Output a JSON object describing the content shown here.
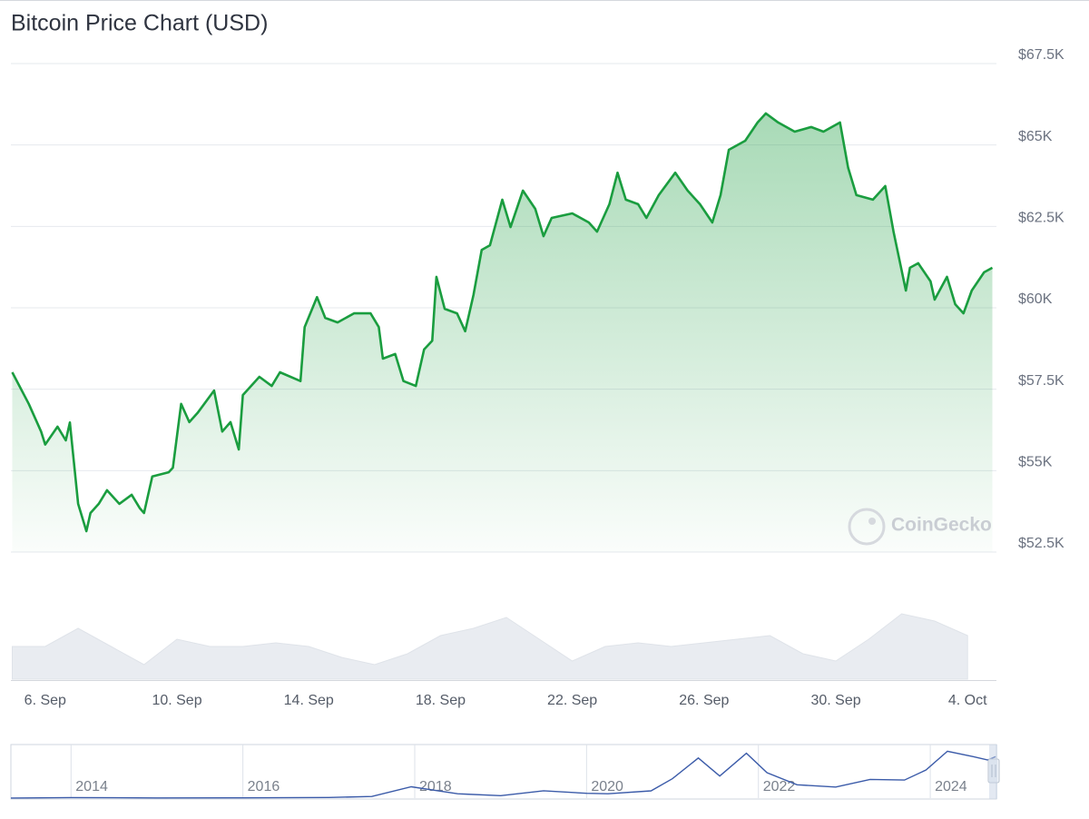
{
  "chart_data": [
    {
      "type": "line",
      "title": "Bitcoin Price Chart (USD)",
      "watermark": "CoinGecko",
      "color": "#1a9d3f",
      "grid": true,
      "xlim": [
        "2024-09-04T23:00",
        "2024-10-04T21:00"
      ],
      "xticks": [
        {
          "value": "2024-09-06T00:00",
          "label": "6. Sep"
        },
        {
          "value": "2024-09-10T00:00",
          "label": "10. Sep"
        },
        {
          "value": "2024-09-14T00:00",
          "label": "14. Sep"
        },
        {
          "value": "2024-09-18T00:00",
          "label": "18. Sep"
        },
        {
          "value": "2024-09-22T00:00",
          "label": "22. Sep"
        },
        {
          "value": "2024-09-26T00:00",
          "label": "26. Sep"
        },
        {
          "value": "2024-09-30T00:00",
          "label": "30. Sep"
        },
        {
          "value": "2024-10-04T00:00",
          "label": "4. Oct"
        }
      ],
      "ylim": [
        52500,
        67500
      ],
      "yticks": [
        {
          "value": 52500,
          "label": "$52.5K"
        },
        {
          "value": 55000,
          "label": "$55K"
        },
        {
          "value": 57500,
          "label": "$57.5K"
        },
        {
          "value": 60000,
          "label": "$60K"
        },
        {
          "value": 62500,
          "label": "$62.5K"
        },
        {
          "value": 65000,
          "label": "$65K"
        },
        {
          "value": 67500,
          "label": "$67.5K"
        }
      ],
      "x": [
        "2024-09-05T00:00",
        "2024-09-05T12:00",
        "2024-09-05T21:00",
        "2024-09-06T00:00",
        "2024-09-06T09:00",
        "2024-09-06T15:00",
        "2024-09-06T18:00",
        "2024-09-07T00:00",
        "2024-09-07T06:00",
        "2024-09-07T09:00",
        "2024-09-07T15:00",
        "2024-09-07T21:00",
        "2024-09-08T06:00",
        "2024-09-08T15:00",
        "2024-09-08T21:00",
        "2024-09-09T00:00",
        "2024-09-09T06:00",
        "2024-09-09T18:00",
        "2024-09-09T21:00",
        "2024-09-10T03:00",
        "2024-09-10T09:00",
        "2024-09-10T15:00",
        "2024-09-11T03:00",
        "2024-09-11T09:00",
        "2024-09-11T15:00",
        "2024-09-11T21:00",
        "2024-09-12T00:00",
        "2024-09-12T12:00",
        "2024-09-12T21:00",
        "2024-09-13T03:00",
        "2024-09-13T18:00",
        "2024-09-13T21:00",
        "2024-09-14T06:00",
        "2024-09-14T12:00",
        "2024-09-14T21:00",
        "2024-09-15T09:00",
        "2024-09-15T21:00",
        "2024-09-16T03:00",
        "2024-09-16T06:00",
        "2024-09-16T15:00",
        "2024-09-16T21:00",
        "2024-09-17T06:00",
        "2024-09-17T12:00",
        "2024-09-17T18:00",
        "2024-09-17T21:00",
        "2024-09-18T03:00",
        "2024-09-18T12:00",
        "2024-09-18T18:00",
        "2024-09-19T00:00",
        "2024-09-19T06:00",
        "2024-09-19T12:00",
        "2024-09-19T21:00",
        "2024-09-20T03:00",
        "2024-09-20T12:00",
        "2024-09-20T21:00",
        "2024-09-21T03:00",
        "2024-09-21T09:00",
        "2024-09-22T00:00",
        "2024-09-22T12:00",
        "2024-09-22T18:00",
        "2024-09-23T03:00",
        "2024-09-23T09:00",
        "2024-09-23T15:00",
        "2024-09-24T00:00",
        "2024-09-24T06:00",
        "2024-09-24T15:00",
        "2024-09-25T03:00",
        "2024-09-25T12:00",
        "2024-09-25T21:00",
        "2024-09-26T06:00",
        "2024-09-26T12:00",
        "2024-09-26T18:00",
        "2024-09-27T06:00",
        "2024-09-27T15:00",
        "2024-09-27T21:00",
        "2024-09-28T06:00",
        "2024-09-28T18:00",
        "2024-09-29T06:00",
        "2024-09-29T15:00",
        "2024-09-30T03:00",
        "2024-09-30T09:00",
        "2024-09-30T15:00",
        "2024-10-01T03:00",
        "2024-10-01T12:00",
        "2024-10-01T18:00",
        "2024-10-02T03:00",
        "2024-10-02T06:00",
        "2024-10-02T12:00",
        "2024-10-02T21:00",
        "2024-10-03T00:00",
        "2024-10-03T09:00",
        "2024-10-03T15:00",
        "2024-10-03T21:00",
        "2024-10-04T03:00",
        "2024-10-04T12:00",
        "2024-10-04T18:00"
      ],
      "values": [
        58020,
        57050,
        56200,
        55800,
        56350,
        55930,
        56480,
        53980,
        53140,
        53700,
        53980,
        54400,
        53980,
        54260,
        53840,
        53700,
        54820,
        54950,
        55090,
        57050,
        56490,
        56770,
        57460,
        56200,
        56490,
        55650,
        57320,
        57880,
        57600,
        58020,
        57750,
        59410,
        60330,
        59690,
        59550,
        59830,
        59830,
        59410,
        58440,
        58580,
        57750,
        57600,
        58720,
        58990,
        60950,
        59970,
        59830,
        59280,
        60390,
        61780,
        61920,
        63320,
        62480,
        63600,
        63040,
        62200,
        62760,
        62900,
        62620,
        62340,
        63180,
        64150,
        63320,
        63180,
        62760,
        63460,
        64150,
        63600,
        63180,
        62620,
        63460,
        64850,
        65130,
        65690,
        65970,
        65690,
        65410,
        65550,
        65410,
        65690,
        64300,
        63460,
        63320,
        63740,
        62340,
        60530,
        61230,
        61370,
        60810,
        60250,
        60950,
        60110,
        59830,
        60530,
        61090,
        61230
      ]
    },
    {
      "type": "area",
      "color": "#e9ecf1",
      "xlim": [
        "2024-09-04T23:00",
        "2024-10-04T21:00"
      ],
      "ylim": [
        0,
        100
      ],
      "x": [
        "2024-09-05T00:00",
        "2024-09-06T00:00",
        "2024-09-07T00:00",
        "2024-09-08T00:00",
        "2024-09-09T00:00",
        "2024-09-10T00:00",
        "2024-09-11T00:00",
        "2024-09-12T00:00",
        "2024-09-13T00:00",
        "2024-09-14T00:00",
        "2024-09-15T00:00",
        "2024-09-16T00:00",
        "2024-09-17T00:00",
        "2024-09-18T00:00",
        "2024-09-19T00:00",
        "2024-09-20T00:00",
        "2024-09-21T00:00",
        "2024-09-22T00:00",
        "2024-09-23T00:00",
        "2024-09-24T00:00",
        "2024-09-25T00:00",
        "2024-09-26T00:00",
        "2024-09-27T00:00",
        "2024-09-28T00:00",
        "2024-09-29T00:00",
        "2024-09-30T00:00",
        "2024-10-01T00:00",
        "2024-10-02T00:00",
        "2024-10-03T00:00",
        "2024-10-04T00:00"
      ],
      "values": [
        45,
        45,
        70,
        45,
        20,
        55,
        45,
        45,
        50,
        45,
        30,
        20,
        35,
        60,
        70,
        85,
        55,
        25,
        45,
        50,
        45,
        50,
        55,
        60,
        35,
        25,
        55,
        90,
        80,
        60
      ]
    },
    {
      "type": "line",
      "color": "#3b5ba9",
      "grid": true,
      "xlim": [
        2013.3,
        2024.77
      ],
      "xticks": [
        2014,
        2016,
        2018,
        2020,
        2022,
        2024
      ],
      "ylim": [
        0,
        80000
      ],
      "x": [
        2013.3,
        2014,
        2015,
        2016,
        2017,
        2017.5,
        2017.96,
        2018.5,
        2019,
        2019.5,
        2020,
        2020.25,
        2020.75,
        2021,
        2021.3,
        2021.55,
        2021.86,
        2022.1,
        2022.45,
        2022.9,
        2023.3,
        2023.7,
        2023.95,
        2024.2,
        2024.5,
        2024.67,
        2024.76
      ],
      "values": [
        100,
        800,
        250,
        430,
        1000,
        2500,
        17000,
        6500,
        3700,
        11000,
        7200,
        6500,
        10800,
        29000,
        60000,
        33000,
        67000,
        38000,
        20000,
        16500,
        28000,
        27000,
        42000,
        70000,
        62000,
        57000,
        62000
      ]
    }
  ]
}
